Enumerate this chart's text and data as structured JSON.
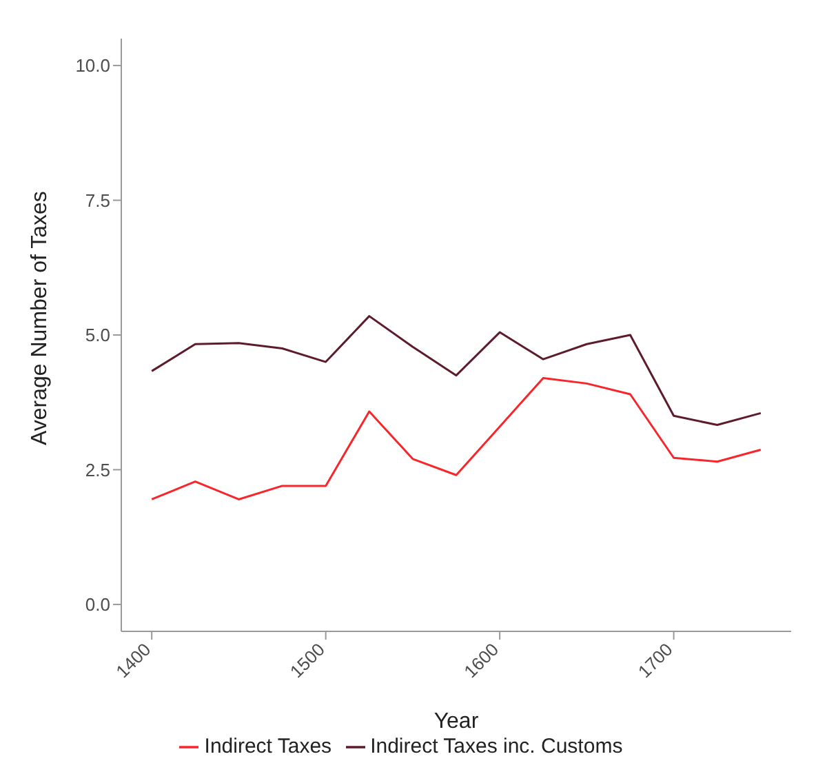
{
  "chart_data": {
    "type": "line",
    "xlabel": "Year",
    "ylabel": "Average Number of Taxes",
    "x": [
      1400,
      1425,
      1450,
      1475,
      1500,
      1525,
      1550,
      1575,
      1600,
      1625,
      1650,
      1675,
      1700,
      1725,
      1750
    ],
    "series": [
      {
        "name": "Indirect Taxes",
        "color": "#f8262a",
        "values": [
          1.95,
          2.28,
          1.95,
          2.2,
          2.2,
          3.58,
          2.7,
          2.4,
          3.3,
          4.2,
          4.1,
          3.9,
          2.72,
          2.65,
          2.87
        ]
      },
      {
        "name": "Indirect Taxes inc. Customs",
        "color": "#5c1c2c",
        "values": [
          4.33,
          4.83,
          4.85,
          4.75,
          4.5,
          5.35,
          4.78,
          4.25,
          5.05,
          4.55,
          4.83,
          5.0,
          3.5,
          3.33,
          3.55
        ]
      }
    ],
    "xlim": [
      1382.5,
      1767.5
    ],
    "xticks": [
      1400,
      1500,
      1600,
      1700
    ],
    "ylim": [
      -0.5,
      10.5
    ],
    "yticks": [
      {
        "value": 0,
        "label": "0.0"
      },
      {
        "value": 2.5,
        "label": "2.5"
      },
      {
        "value": 5,
        "label": "5.0"
      },
      {
        "value": 7.5,
        "label": "7.5"
      },
      {
        "value": 10,
        "label": "10.0"
      }
    ],
    "grid": false,
    "legend": "bottom",
    "marker": "none",
    "line_style": "solid"
  }
}
